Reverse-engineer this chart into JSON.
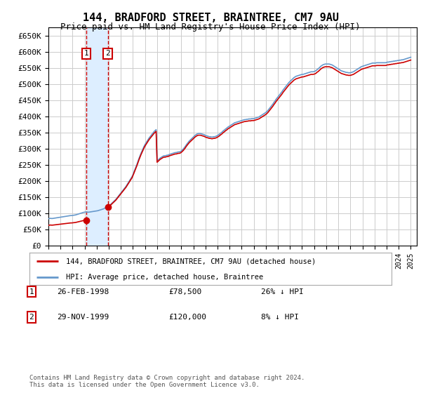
{
  "title": "144, BRADFORD STREET, BRAINTREE, CM7 9AU",
  "subtitle": "Price paid vs. HM Land Registry's House Price Index (HPI)",
  "ylabel_ticks": [
    0,
    50000,
    100000,
    150000,
    200000,
    250000,
    300000,
    350000,
    400000,
    450000,
    500000,
    550000,
    600000,
    650000
  ],
  "ylim": [
    0,
    675000
  ],
  "xlim_start": 1995.0,
  "xlim_end": 2025.5,
  "purchase1_year": 1998.15,
  "purchase1_price": 78500,
  "purchase2_year": 1999.91,
  "purchase2_price": 120000,
  "red_line_color": "#cc0000",
  "blue_line_color": "#6699cc",
  "shade_color": "#ddeeff",
  "vline_color": "#cc0000",
  "grid_color": "#cccccc",
  "bg_color": "#ffffff",
  "plot_bg_color": "#ffffff",
  "marker_box_color": "#cc0000",
  "legend_label_red": "144, BRADFORD STREET, BRAINTREE, CM7 9AU (detached house)",
  "legend_label_blue": "HPI: Average price, detached house, Braintree",
  "footnote": "Contains HM Land Registry data © Crown copyright and database right 2024.\nThis data is licensed under the Open Government Licence v3.0.",
  "table_rows": [
    {
      "num": "1",
      "date": "26-FEB-1998",
      "price": "£78,500",
      "hpi": "26% ↓ HPI"
    },
    {
      "num": "2",
      "date": "29-NOV-1999",
      "price": "£120,000",
      "hpi": "8% ↓ HPI"
    }
  ],
  "hpi_years": [
    1995.0,
    1995.083,
    1995.167,
    1995.25,
    1995.333,
    1995.417,
    1995.5,
    1995.583,
    1995.667,
    1995.75,
    1995.833,
    1995.917,
    1996.0,
    1996.083,
    1996.167,
    1996.25,
    1996.333,
    1996.417,
    1996.5,
    1996.583,
    1996.667,
    1996.75,
    1996.833,
    1996.917,
    1997.0,
    1997.083,
    1997.167,
    1997.25,
    1997.333,
    1997.417,
    1997.5,
    1997.583,
    1997.667,
    1997.75,
    1997.833,
    1997.917,
    1998.0,
    1998.083,
    1998.167,
    1998.25,
    1998.333,
    1998.417,
    1998.5,
    1998.583,
    1998.667,
    1998.75,
    1998.833,
    1998.917,
    1999.0,
    1999.083,
    1999.167,
    1999.25,
    1999.333,
    1999.417,
    1999.5,
    1999.583,
    1999.667,
    1999.75,
    1999.833,
    1999.917,
    2000.0,
    2000.083,
    2000.167,
    2000.25,
    2000.333,
    2000.417,
    2000.5,
    2000.583,
    2000.667,
    2000.75,
    2000.833,
    2000.917,
    2001.0,
    2001.083,
    2001.167,
    2001.25,
    2001.333,
    2001.417,
    2001.5,
    2001.583,
    2001.667,
    2001.75,
    2001.833,
    2001.917,
    2002.0,
    2002.083,
    2002.167,
    2002.25,
    2002.333,
    2002.417,
    2002.5,
    2002.583,
    2002.667,
    2002.75,
    2002.833,
    2002.917,
    2003.0,
    2003.083,
    2003.167,
    2003.25,
    2003.333,
    2003.417,
    2003.5,
    2003.583,
    2003.667,
    2003.75,
    2003.833,
    2003.917,
    2004.0,
    2004.083,
    2004.167,
    2004.25,
    2004.333,
    2004.417,
    2004.5,
    2004.583,
    2004.667,
    2004.75,
    2004.833,
    2004.917,
    2005.0,
    2005.083,
    2005.167,
    2005.25,
    2005.333,
    2005.417,
    2005.5,
    2005.583,
    2005.667,
    2005.75,
    2005.833,
    2005.917,
    2006.0,
    2006.083,
    2006.167,
    2006.25,
    2006.333,
    2006.417,
    2006.5,
    2006.583,
    2006.667,
    2006.75,
    2006.833,
    2006.917,
    2007.0,
    2007.083,
    2007.167,
    2007.25,
    2007.333,
    2007.417,
    2007.5,
    2007.583,
    2007.667,
    2007.75,
    2007.833,
    2007.917,
    2008.0,
    2008.083,
    2008.167,
    2008.25,
    2008.333,
    2008.417,
    2008.5,
    2008.583,
    2008.667,
    2008.75,
    2008.833,
    2008.917,
    2009.0,
    2009.083,
    2009.167,
    2009.25,
    2009.333,
    2009.417,
    2009.5,
    2009.583,
    2009.667,
    2009.75,
    2009.833,
    2009.917,
    2010.0,
    2010.083,
    2010.167,
    2010.25,
    2010.333,
    2010.417,
    2010.5,
    2010.583,
    2010.667,
    2010.75,
    2010.833,
    2010.917,
    2011.0,
    2011.083,
    2011.167,
    2011.25,
    2011.333,
    2011.417,
    2011.5,
    2011.583,
    2011.667,
    2011.75,
    2011.833,
    2011.917,
    2012.0,
    2012.083,
    2012.167,
    2012.25,
    2012.333,
    2012.417,
    2012.5,
    2012.583,
    2012.667,
    2012.75,
    2012.833,
    2012.917,
    2013.0,
    2013.083,
    2013.167,
    2013.25,
    2013.333,
    2013.417,
    2013.5,
    2013.583,
    2013.667,
    2013.75,
    2013.833,
    2013.917,
    2014.0,
    2014.083,
    2014.167,
    2014.25,
    2014.333,
    2014.417,
    2014.5,
    2014.583,
    2014.667,
    2014.75,
    2014.833,
    2014.917,
    2015.0,
    2015.083,
    2015.167,
    2015.25,
    2015.333,
    2015.417,
    2015.5,
    2015.583,
    2015.667,
    2015.75,
    2015.833,
    2015.917,
    2016.0,
    2016.083,
    2016.167,
    2016.25,
    2016.333,
    2016.417,
    2016.5,
    2016.583,
    2016.667,
    2016.75,
    2016.833,
    2016.917,
    2017.0,
    2017.083,
    2017.167,
    2017.25,
    2017.333,
    2017.417,
    2017.5,
    2017.583,
    2017.667,
    2017.75,
    2017.833,
    2017.917,
    2018.0,
    2018.083,
    2018.167,
    2018.25,
    2018.333,
    2018.417,
    2018.5,
    2018.583,
    2018.667,
    2018.75,
    2018.833,
    2018.917,
    2019.0,
    2019.083,
    2019.167,
    2019.25,
    2019.333,
    2019.417,
    2019.5,
    2019.583,
    2019.667,
    2019.75,
    2019.833,
    2019.917,
    2020.0,
    2020.083,
    2020.167,
    2020.25,
    2020.333,
    2020.417,
    2020.5,
    2020.583,
    2020.667,
    2020.75,
    2020.833,
    2020.917,
    2021.0,
    2021.083,
    2021.167,
    2021.25,
    2021.333,
    2021.417,
    2021.5,
    2021.583,
    2021.667,
    2021.75,
    2021.833,
    2021.917,
    2022.0,
    2022.083,
    2022.167,
    2022.25,
    2022.333,
    2022.417,
    2022.5,
    2022.583,
    2022.667,
    2022.75,
    2022.833,
    2022.917,
    2023.0,
    2023.083,
    2023.167,
    2023.25,
    2023.333,
    2023.417,
    2023.5,
    2023.583,
    2023.667,
    2023.75,
    2023.833,
    2023.917,
    2024.0,
    2024.083,
    2024.167,
    2024.25,
    2024.333,
    2024.417,
    2024.5,
    2024.583,
    2024.667,
    2024.75,
    2024.833,
    2024.917,
    2025.0
  ],
  "hpi_values": [
    83000,
    84000,
    84500,
    84000,
    84000,
    84500,
    85000,
    85500,
    86000,
    86500,
    87000,
    87500,
    88000,
    88500,
    89000,
    89500,
    90000,
    90500,
    91000,
    91500,
    92000,
    92500,
    93000,
    93000,
    93500,
    94000,
    94500,
    95000,
    96000,
    97000,
    98000,
    99000,
    100000,
    101000,
    102000,
    103000,
    103500,
    104000,
    104000,
    103500,
    103500,
    104000,
    104500,
    105000,
    105500,
    106000,
    106500,
    107000,
    107500,
    108000,
    109000,
    110000,
    111000,
    112000,
    113000,
    114000,
    116000,
    118000,
    120000,
    122000,
    124000,
    126000,
    128000,
    131000,
    134000,
    137000,
    140000,
    143000,
    147000,
    151000,
    155000,
    159000,
    163000,
    167000,
    171000,
    175000,
    179000,
    183000,
    188000,
    193000,
    198000,
    203000,
    208000,
    213000,
    220000,
    228000,
    236000,
    244000,
    252000,
    261000,
    270000,
    278000,
    286000,
    293000,
    300000,
    307000,
    313000,
    318000,
    323000,
    328000,
    333000,
    337000,
    341000,
    345000,
    349000,
    353000,
    356000,
    359000,
    262000,
    265000,
    268000,
    271000,
    273000,
    275000,
    277000,
    278000,
    278000,
    279000,
    280000,
    280000,
    282000,
    283000,
    284000,
    285000,
    286000,
    287000,
    288000,
    288000,
    289000,
    290000,
    290000,
    291000,
    293000,
    296000,
    299000,
    303000,
    307000,
    312000,
    316000,
    320000,
    324000,
    327000,
    330000,
    333000,
    336000,
    339000,
    342000,
    344000,
    346000,
    347000,
    347000,
    347000,
    346000,
    345000,
    344000,
    343000,
    341000,
    340000,
    339000,
    338000,
    337000,
    337000,
    336000,
    336000,
    337000,
    337000,
    338000,
    339000,
    341000,
    343000,
    345000,
    348000,
    350000,
    353000,
    356000,
    358000,
    361000,
    363000,
    366000,
    368000,
    370000,
    372000,
    374000,
    376000,
    378000,
    380000,
    381000,
    382000,
    383000,
    384000,
    385000,
    386000,
    387000,
    388000,
    389000,
    390000,
    390000,
    391000,
    391000,
    392000,
    392000,
    392000,
    393000,
    393000,
    393000,
    394000,
    395000,
    396000,
    397000,
    398000,
    400000,
    402000,
    404000,
    406000,
    408000,
    410000,
    412000,
    415000,
    418000,
    422000,
    426000,
    430000,
    434000,
    438000,
    443000,
    447000,
    452000,
    456000,
    460000,
    464000,
    468000,
    472000,
    476000,
    481000,
    485000,
    489000,
    493000,
    497000,
    501000,
    505000,
    508000,
    511000,
    514000,
    517000,
    520000,
    522000,
    524000,
    525000,
    526000,
    527000,
    528000,
    529000,
    530000,
    530000,
    531000,
    532000,
    533000,
    534000,
    535000,
    536000,
    537000,
    538000,
    538000,
    538000,
    539000,
    540000,
    542000,
    545000,
    547000,
    550000,
    553000,
    556000,
    558000,
    560000,
    561000,
    562000,
    562000,
    562000,
    562000,
    562000,
    561000,
    560000,
    559000,
    557000,
    555000,
    553000,
    551000,
    549000,
    547000,
    545000,
    543000,
    541000,
    540000,
    539000,
    538000,
    537000,
    536000,
    536000,
    535000,
    535000,
    535000,
    536000,
    537000,
    538000,
    540000,
    542000,
    544000,
    546000,
    548000,
    550000,
    552000,
    554000,
    555000,
    556000,
    557000,
    558000,
    559000,
    560000,
    561000,
    562000,
    563000,
    564000,
    565000,
    565000,
    565000,
    565000,
    566000,
    566000,
    566000,
    566000,
    566000,
    566000,
    566000,
    566000,
    566000,
    566000,
    567000,
    568000,
    568000,
    569000,
    569000,
    570000,
    570000,
    571000,
    571000,
    572000,
    572000,
    573000,
    573000,
    574000,
    574000,
    575000,
    575000,
    576000,
    577000,
    578000,
    579000,
    580000,
    581000,
    582000,
    583000
  ]
}
